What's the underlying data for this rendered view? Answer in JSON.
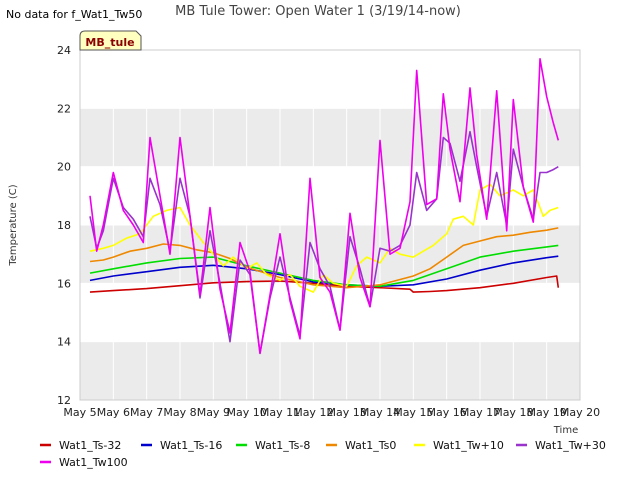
{
  "note": "No data for f_Wat1_Tw50",
  "badge": "MB_tule",
  "colors": {
    "band": "#ebebeb",
    "grid": "#ffffff",
    "axis": "#cccccc",
    "badge_fill": "#ffffc0",
    "badge_stroke": "#555555"
  },
  "chart_data": {
    "type": "line",
    "title": "MB Tule Tower: Open Water 1 (3/19/14-now)",
    "xlabel": "Time",
    "ylabel": "Temperature (C)",
    "xlim": [
      5,
      20
    ],
    "ylim": [
      12,
      24
    ],
    "yticks": [
      12,
      14,
      16,
      18,
      20,
      22,
      24
    ],
    "xticks": [
      {
        "value": 5,
        "label": "May 5"
      },
      {
        "value": 6,
        "label": "May 6"
      },
      {
        "value": 7,
        "label": "May 7"
      },
      {
        "value": 8,
        "label": "May 8"
      },
      {
        "value": 9,
        "label": "May 9"
      },
      {
        "value": 10,
        "label": "May 10"
      },
      {
        "value": 11,
        "label": "May 11"
      },
      {
        "value": 12,
        "label": "May 12"
      },
      {
        "value": 13,
        "label": "May 13"
      },
      {
        "value": 14,
        "label": "May 14"
      },
      {
        "value": 15,
        "label": "May 15"
      },
      {
        "value": 16,
        "label": "May 16"
      },
      {
        "value": 17,
        "label": "May 17"
      },
      {
        "value": 18,
        "label": "May 18"
      },
      {
        "value": 19,
        "label": "May 19"
      },
      {
        "value": 20,
        "label": "May 20"
      }
    ],
    "grid": true,
    "legend_position": "bottom",
    "series": [
      {
        "name": "Wat1_Ts-32",
        "color": "#cc0000",
        "x": [
          5.3,
          6,
          7,
          8,
          9,
          10,
          11,
          12,
          13,
          14,
          14.9,
          15,
          15.5,
          16,
          17,
          18,
          19,
          19.3,
          19.35
        ],
        "y": [
          15.7,
          15.75,
          15.82,
          15.92,
          16.02,
          16.06,
          16.08,
          16.0,
          15.9,
          15.85,
          15.8,
          15.7,
          15.72,
          15.75,
          15.85,
          16.0,
          16.2,
          16.25,
          15.85
        ]
      },
      {
        "name": "Wat1_Ts-16",
        "color": "#0000cc",
        "x": [
          5.3,
          6,
          7,
          8,
          9,
          10,
          11,
          12,
          13,
          14,
          15,
          16,
          17,
          18,
          19,
          19.35
        ],
        "y": [
          16.1,
          16.25,
          16.4,
          16.55,
          16.62,
          16.5,
          16.3,
          16.05,
          15.95,
          15.9,
          15.95,
          16.15,
          16.45,
          16.7,
          16.88,
          16.93
        ]
      },
      {
        "name": "Wat1_Ts-8",
        "color": "#00dd00",
        "x": [
          5.3,
          6,
          7,
          8,
          9,
          10,
          11,
          12,
          13,
          14,
          15,
          16,
          17,
          18,
          19,
          19.35
        ],
        "y": [
          16.35,
          16.5,
          16.7,
          16.85,
          16.9,
          16.6,
          16.35,
          16.1,
          15.95,
          15.9,
          16.1,
          16.5,
          16.9,
          17.1,
          17.25,
          17.3
        ]
      },
      {
        "name": "Wat1_Ts0",
        "color": "#ee8800",
        "x": [
          5.3,
          5.7,
          6,
          6.5,
          7,
          7.5,
          8,
          8.5,
          9,
          9.5,
          10,
          11,
          12,
          13,
          14,
          15,
          15.5,
          16,
          16.5,
          17,
          17.5,
          18,
          18.5,
          19,
          19.35
        ],
        "y": [
          16.75,
          16.8,
          16.9,
          17.1,
          17.2,
          17.35,
          17.3,
          17.15,
          17.05,
          16.85,
          16.55,
          16.2,
          15.95,
          15.85,
          15.95,
          16.25,
          16.5,
          16.9,
          17.3,
          17.45,
          17.6,
          17.65,
          17.75,
          17.82,
          17.9
        ]
      },
      {
        "name": "Wat1_Tw+10",
        "color": "#ffff00",
        "x": [
          5.3,
          5.7,
          6,
          6.4,
          6.8,
          7.2,
          7.6,
          8,
          8.3,
          8.7,
          9,
          9.3,
          9.6,
          10,
          10.3,
          10.6,
          11,
          11.3,
          11.6,
          12,
          12.3,
          12.6,
          13,
          13.3,
          13.6,
          14,
          14.3,
          14.6,
          15,
          15.3,
          15.6,
          16,
          16.2,
          16.5,
          16.8,
          17,
          17.3,
          17.6,
          18,
          18.3,
          18.6,
          18.9,
          19.1,
          19.35
        ],
        "y": [
          17.1,
          17.2,
          17.3,
          17.55,
          17.7,
          18.3,
          18.5,
          18.6,
          18.0,
          17.4,
          17.0,
          16.6,
          16.9,
          16.5,
          16.7,
          16.3,
          16.1,
          16.3,
          15.9,
          15.7,
          16.3,
          16.0,
          15.9,
          16.6,
          16.9,
          16.7,
          17.2,
          17.0,
          16.9,
          17.1,
          17.3,
          17.7,
          18.2,
          18.3,
          18.0,
          19.2,
          19.4,
          19.0,
          19.2,
          19.0,
          19.2,
          18.3,
          18.5,
          18.6
        ]
      },
      {
        "name": "Wat1_Tw+30",
        "color": "#9933cc",
        "x": [
          5.3,
          5.5,
          5.7,
          6,
          6.3,
          6.6,
          6.9,
          7.1,
          7.4,
          7.7,
          8,
          8.3,
          8.6,
          8.9,
          9.2,
          9.5,
          9.8,
          10.1,
          10.4,
          10.7,
          11,
          11.3,
          11.6,
          11.9,
          12.2,
          12.5,
          12.8,
          13.1,
          13.4,
          13.7,
          14,
          14.3,
          14.6,
          14.9,
          15.1,
          15.4,
          15.7,
          15.9,
          16.1,
          16.4,
          16.7,
          16.9,
          17.2,
          17.5,
          17.8,
          18.0,
          18.3,
          18.6,
          18.8,
          19.0,
          19.2,
          19.35
        ],
        "y": [
          18.3,
          17.2,
          17.8,
          19.6,
          18.6,
          18.2,
          17.6,
          19.6,
          18.7,
          17.1,
          19.6,
          18.3,
          15.5,
          17.8,
          16.0,
          14.0,
          16.8,
          16.3,
          13.6,
          15.5,
          16.9,
          15.5,
          14.2,
          17.4,
          16.5,
          15.9,
          14.4,
          17.6,
          16.5,
          15.2,
          17.2,
          17.1,
          17.3,
          18.0,
          19.8,
          18.5,
          18.9,
          21.0,
          20.8,
          19.5,
          21.2,
          20.0,
          18.3,
          19.8,
          18.0,
          20.6,
          19.3,
          18.2,
          19.8,
          19.8,
          19.9,
          20.0
        ]
      },
      {
        "name": "Wat1_Tw100",
        "color": "#ee00ee",
        "x": [
          5.3,
          5.5,
          5.7,
          6,
          6.3,
          6.6,
          6.9,
          7.1,
          7.4,
          7.7,
          8,
          8.3,
          8.6,
          8.9,
          9.2,
          9.5,
          9.8,
          10.1,
          10.4,
          10.7,
          11,
          11.3,
          11.6,
          11.9,
          12.2,
          12.5,
          12.8,
          13.1,
          13.4,
          13.7,
          14,
          14.3,
          14.6,
          14.9,
          15.1,
          15.4,
          15.7,
          15.9,
          16.1,
          16.4,
          16.7,
          16.9,
          17.2,
          17.5,
          17.8,
          18.0,
          18.3,
          18.6,
          18.8,
          19.0,
          19.2,
          19.35
        ],
        "y": [
          19.0,
          17.1,
          18.0,
          19.8,
          18.5,
          18.0,
          17.4,
          21.0,
          19.0,
          17.0,
          21.0,
          18.3,
          15.6,
          18.6,
          15.8,
          14.3,
          17.4,
          16.4,
          13.6,
          15.6,
          17.7,
          15.4,
          14.1,
          19.6,
          16.2,
          15.7,
          14.4,
          18.4,
          16.2,
          15.2,
          20.9,
          17.0,
          17.2,
          18.8,
          23.3,
          18.7,
          18.9,
          22.5,
          20.6,
          18.8,
          22.7,
          20.4,
          18.2,
          22.6,
          17.8,
          22.3,
          19.3,
          18.1,
          23.7,
          22.4,
          21.5,
          20.9
        ]
      }
    ]
  }
}
